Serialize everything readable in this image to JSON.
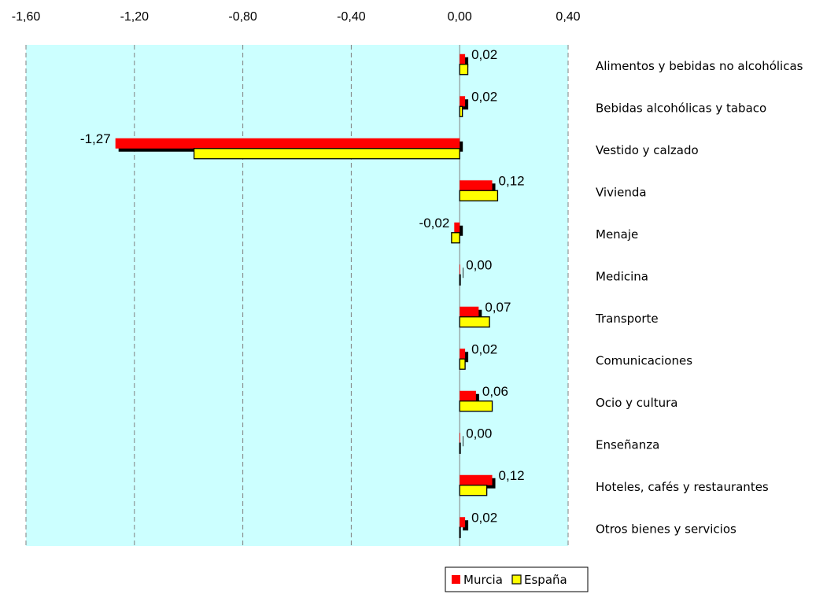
{
  "chart_data": {
    "type": "bar",
    "orientation": "horizontal",
    "title": "",
    "xlabel": "",
    "ylabel": "",
    "xlim": [
      -1.6,
      0.4
    ],
    "x_ticks": [
      -1.6,
      -1.2,
      -0.8,
      -0.4,
      0.0,
      0.4
    ],
    "x_tick_labels": [
      "-1,60",
      "-1,20",
      "-0,80",
      "-0,40",
      "0,00",
      "0,40"
    ],
    "grid": "vertical dashed",
    "legend_position": "bottom-right",
    "categories": [
      "Alimentos y bebidas no alcohólicas",
      "Bebidas alcohólicas y tabaco",
      "Vestido y calzado",
      "Vivienda",
      "Menaje",
      "Medicina",
      "Transporte",
      "Comunicaciones",
      "Ocio y cultura",
      "Enseñanza",
      "Hoteles, cafés y restaurantes",
      "Otros bienes y servicios"
    ],
    "series": [
      {
        "name": "Murcia",
        "color": "#ff0000",
        "values": [
          0.02,
          0.02,
          -1.27,
          0.12,
          -0.02,
          0.0,
          0.07,
          0.02,
          0.06,
          0.0,
          0.12,
          0.02
        ]
      },
      {
        "name": "España",
        "color": "#ffff00",
        "values": [
          0.03,
          0.01,
          -0.98,
          0.14,
          -0.03,
          0.0,
          0.11,
          0.02,
          0.12,
          0.0,
          0.1,
          0.0
        ]
      }
    ],
    "data_labels": [
      "0,02",
      "0,02",
      "-1,27",
      "0,12",
      "-0,02",
      "0,00",
      "0,07",
      "0,02",
      "0,06",
      "0,00",
      "0,12",
      "0,02"
    ],
    "colors": {
      "plot_background": "#ccffff",
      "grid": "#808080",
      "bar_outline": "#000000"
    }
  }
}
